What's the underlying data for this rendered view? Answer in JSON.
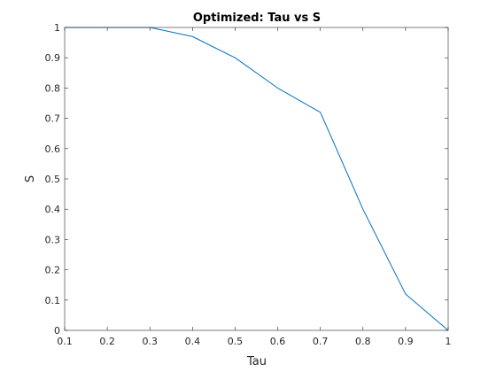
{
  "chart_data": {
    "type": "line",
    "title": "Optimized: Tau vs S",
    "xlabel": "Tau",
    "ylabel": "S",
    "xlim": [
      0.1,
      1
    ],
    "ylim": [
      0,
      1
    ],
    "xticks": [
      "0.1",
      "0.2",
      "0.3",
      "0.4",
      "0.5",
      "0.6",
      "0.7",
      "0.8",
      "0.9",
      "1"
    ],
    "yticks": [
      "0",
      "0.1",
      "0.2",
      "0.3",
      "0.4",
      "0.5",
      "0.6",
      "0.7",
      "0.8",
      "0.9",
      "1"
    ],
    "grid": false,
    "legend": "none",
    "series": [
      {
        "color": "#0072BD",
        "x": [
          0.1,
          0.2,
          0.3,
          0.4,
          0.5,
          0.6,
          0.7,
          0.8,
          0.9,
          1.0
        ],
        "y": [
          1.0,
          1.0,
          1.0,
          0.97,
          0.9,
          0.8,
          0.72,
          0.4,
          0.12,
          0.0
        ]
      }
    ]
  },
  "colors": {
    "axis": "#262626",
    "background": "#ffffff"
  }
}
